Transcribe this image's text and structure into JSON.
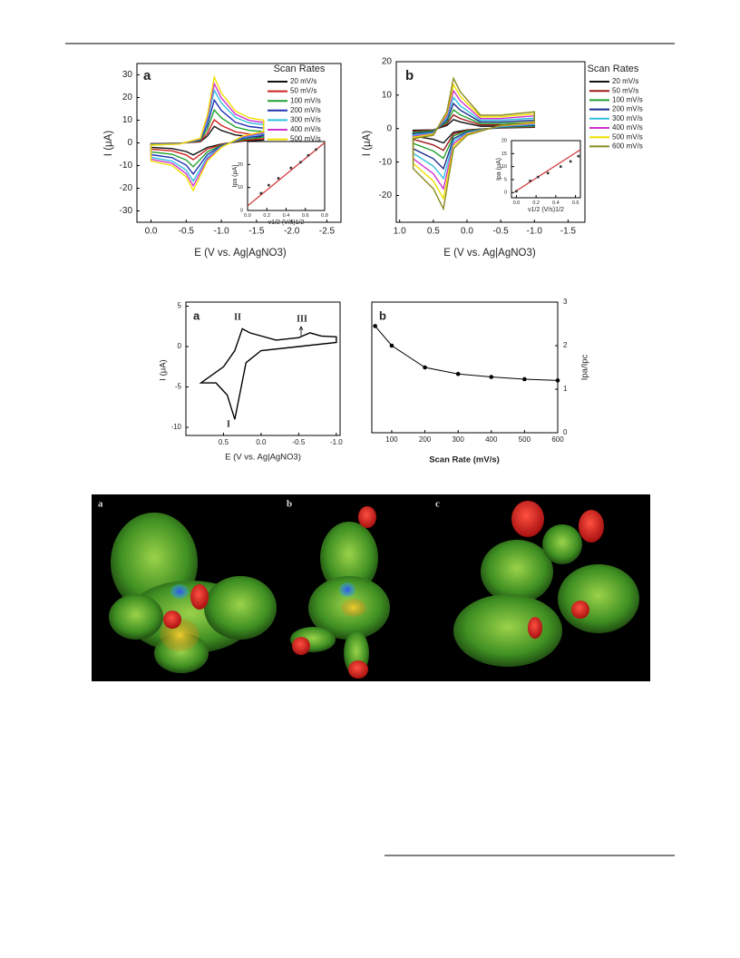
{
  "chart_data": [
    {
      "type": "line",
      "closed": true,
      "panel_label": "a",
      "x_label": "E (V vs. Ag|AgNO3)",
      "y_label": "I (μA)",
      "legend": true,
      "legend_title": "Scan Rates",
      "x": [
        0,
        -0.4,
        -0.7,
        -0.8,
        -0.9,
        -1.0,
        -1.2,
        -1.4,
        -1.6,
        -1.6,
        -1.3,
        -1.0,
        -0.8,
        -0.6,
        -0.5,
        -0.3,
        0
      ],
      "series": [
        {
          "name": "20 mV/s",
          "color": "#111111",
          "values": [
            -0.3,
            -0.1,
            0.5,
            3,
            7.3,
            5.5,
            3.5,
            2.8,
            2.5,
            1.3,
            0.8,
            -0.5,
            -2,
            -5.3,
            -3.8,
            -2.5,
            -2
          ]
        },
        {
          "name": "50 mV/s",
          "color": "#d02020",
          "values": [
            -0.4,
            -0.2,
            0.7,
            4.2,
            10.2,
            7.7,
            4.9,
            3.9,
            3.5,
            1.8,
            1.1,
            -0.7,
            -2.8,
            -7.4,
            -5.3,
            -3.5,
            -2.8
          ]
        },
        {
          "name": "100 mV/s",
          "color": "#20a030",
          "values": [
            -0.5,
            -0.3,
            1,
            6,
            14.5,
            11,
            7,
            5.5,
            5,
            2.5,
            1.5,
            -1,
            -4,
            -10.5,
            -7.5,
            -5,
            -4
          ]
        },
        {
          "name": "200 mV/s",
          "color": "#2030b0",
          "values": [
            -0.7,
            -0.3,
            1.3,
            7.8,
            18.9,
            14.3,
            9.1,
            7.2,
            6.5,
            3.3,
            2,
            -1.3,
            -5.2,
            -13.7,
            -9.8,
            -6.5,
            -5.2
          ]
        },
        {
          "name": "300 mV/s",
          "color": "#30c0e0",
          "values": [
            -0.8,
            -0.4,
            1.6,
            9.6,
            23.2,
            17.6,
            11.2,
            8.8,
            8,
            4,
            2.4,
            -1.6,
            -6.4,
            -16.8,
            -12,
            -8,
            -6.4
          ]
        },
        {
          "name": "400 mV/s",
          "color": "#d030d0",
          "values": [
            -0.9,
            -0.5,
            1.8,
            10.8,
            26.1,
            19.8,
            12.6,
            9.9,
            9,
            4.5,
            2.7,
            -1.8,
            -7.2,
            -18.9,
            -13.5,
            -9,
            -7.2
          ]
        },
        {
          "name": "500 mV/s",
          "color": "#f0e000",
          "values": [
            -1,
            -0.5,
            2,
            12,
            29,
            22,
            14,
            11,
            10,
            5,
            3,
            -2,
            -8,
            -21,
            -15,
            -10,
            -8
          ]
        }
      ],
      "xlim": [
        0.2,
        -2.7
      ],
      "xticks": [
        {
          "value": 0,
          "label": "0.0"
        },
        -0.5,
        {
          "value": -1,
          "label": "-1.0"
        },
        -1.5,
        {
          "value": -2,
          "label": "-2.0"
        },
        -2.5
      ],
      "ylim": [
        -35,
        35
      ],
      "yticks": [
        -30,
        -20,
        -10,
        0,
        10,
        20,
        30
      ],
      "inset": {
        "type": "scatter",
        "x_label": "ν1/2 (V/s)1/2",
        "y_label": "Ipa (μA)",
        "color": "#333333",
        "x": [
          0.14,
          0.22,
          0.32,
          0.45,
          0.55,
          0.63,
          0.71
        ],
        "values": [
          7.5,
          11,
          14,
          18.5,
          21,
          24,
          26.5
        ],
        "fit": {
          "color": "#d03030",
          "x": [
            0,
            0.8
          ],
          "values": [
            2,
            29.5
          ]
        },
        "xlim": [
          0,
          0.8
        ],
        "xticks": [
          {
            "value": 0,
            "label": "0.0"
          },
          0.2,
          0.4,
          0.6,
          0.8
        ],
        "ylim": [
          0,
          30
        ],
        "yticks": [
          0,
          10,
          20
        ]
      }
    },
    {
      "type": "line",
      "closed": true,
      "panel_label": "b",
      "x_label": "E (V vs. Ag|AgNO3)",
      "y_label": "I (μA)",
      "legend": true,
      "legend_title": "Scan Rates",
      "x": [
        0.8,
        0.5,
        0.3,
        0.2,
        0.1,
        -0.2,
        -0.5,
        -1.0,
        -1.0,
        -0.5,
        0,
        0.2,
        0.35,
        0.5,
        0.8
      ],
      "series": [
        {
          "name": "20 mV/s",
          "color": "#111111",
          "values": [
            -0.5,
            -0.4,
            0.9,
            2.7,
            2,
            0.7,
            0.7,
            0.9,
            0.4,
            0.2,
            -0.4,
            -1.1,
            -4.3,
            -3.2,
            -2.2
          ]
        },
        {
          "name": "50 mV/s",
          "color": "#a01818",
          "values": [
            -0.8,
            -0.5,
            1.4,
            4.1,
            3,
            1.1,
            1.1,
            1.4,
            0.5,
            0.3,
            -0.5,
            -1.6,
            -6.5,
            -4.9,
            -3.2
          ]
        },
        {
          "name": "100 mV/s",
          "color": "#20a030",
          "values": [
            -1.1,
            -0.7,
            1.9,
            5.6,
            4.1,
            1.5,
            1.5,
            1.9,
            0.7,
            0.4,
            -0.7,
            -2.2,
            -8.9,
            -6.7,
            -4.4
          ]
        },
        {
          "name": "200 mV/s",
          "color": "#1a2a8a",
          "values": [
            -1.5,
            -1,
            2.5,
            7.5,
            5.5,
            2,
            2,
            2.5,
            1,
            0.5,
            -1,
            -3,
            -12,
            -9,
            -6
          ]
        },
        {
          "name": "300 mV/s",
          "color": "#30c0e0",
          "values": [
            -1.9,
            -1.2,
            3.1,
            9.3,
            6.8,
            2.5,
            2.5,
            3.1,
            1.2,
            0.6,
            -1.2,
            -3.7,
            -14.9,
            -11.2,
            -7.4
          ]
        },
        {
          "name": "400 mV/s",
          "color": "#d030d0",
          "values": [
            -2.3,
            -1.5,
            3.8,
            11.3,
            8.3,
            3,
            3,
            3.8,
            1.5,
            0.8,
            -1.5,
            -4.5,
            -18,
            -13.5,
            -9
          ]
        },
        {
          "name": "500 mV/s",
          "color": "#f0e000",
          "values": [
            -2.6,
            -1.7,
            4.4,
            13.1,
            9.6,
            3.5,
            3.5,
            4.4,
            1.7,
            0.9,
            -1.7,
            -5.2,
            -20.9,
            -15.7,
            -10.4
          ]
        },
        {
          "name": "600 mV/s",
          "color": "#8a8a20",
          "values": [
            -3,
            -2,
            5,
            15,
            11,
            4,
            4,
            5,
            2,
            1,
            -2,
            -6,
            -24,
            -18,
            -12
          ]
        }
      ],
      "xlim": [
        1.05,
        -1.75
      ],
      "xticks": [
        {
          "value": 1,
          "label": "1.0"
        },
        0.5,
        {
          "value": 0,
          "label": "0.0"
        },
        -0.5,
        {
          "value": -1,
          "label": "-1.0"
        },
        -1.5
      ],
      "ylim": [
        -28,
        20
      ],
      "yticks": [
        -20,
        -10,
        0,
        10,
        20
      ],
      "inset": {
        "type": "scatter",
        "x_label": "ν1/2 (V/s)1/2",
        "y_label": "Ipa (μA)",
        "color": "#333333",
        "x": [
          0,
          0.14,
          0.22,
          0.32,
          0.45,
          0.55,
          0.63
        ],
        "values": [
          0.5,
          4.5,
          6,
          7.5,
          10,
          12,
          14
        ],
        "fit": {
          "color": "#d03030",
          "x": [
            -0.02,
            0.65
          ],
          "values": [
            0.2,
            16.5
          ]
        },
        "xlim": [
          -0.05,
          0.65
        ],
        "xticks": [
          {
            "value": 0,
            "label": "0.0"
          },
          0.2,
          0.4,
          0.6
        ],
        "ylim": [
          -2,
          20
        ],
        "yticks": [
          0,
          5,
          10,
          15,
          20
        ]
      }
    },
    {
      "type": "line",
      "closed": true,
      "panel_label": "a",
      "x_label": "E (V vs. Ag|AgNO3)",
      "y_label": "I (μA)",
      "annotations": [
        "I",
        "II",
        "III"
      ],
      "x": [
        0.8,
        0.5,
        0.35,
        0.25,
        0.15,
        -0.2,
        -0.5,
        -0.65,
        -0.8,
        -1.0,
        -1.0,
        -0.5,
        0,
        0.2,
        0.35,
        0.45,
        0.6,
        0.8
      ],
      "series": [
        {
          "color": "#000000",
          "values": [
            -4.5,
            -2.5,
            -0.5,
            2.2,
            1.7,
            0.8,
            1.1,
            1.7,
            1.3,
            1.2,
            0.5,
            0,
            -0.5,
            -2,
            -9,
            -6,
            -4.5,
            -4.5
          ]
        }
      ],
      "xlim": [
        1.0,
        -1.05
      ],
      "xticks": [
        0.5,
        {
          "value": 0,
          "label": "0.0"
        },
        -0.5,
        {
          "value": -1,
          "label": "-1.0"
        }
      ],
      "ylim": [
        -11,
        5.5
      ],
      "yticks": [
        5,
        0,
        -5,
        -10
      ]
    },
    {
      "type": "line",
      "panel_label": "b",
      "x_label": "Scan Rate (mV/s)",
      "y_label": "Ipa/Ipc",
      "y_axis_side": "right",
      "color": "#000000",
      "markers": true,
      "x": [
        50,
        100,
        200,
        300,
        400,
        500,
        600
      ],
      "values": [
        2.45,
        2.0,
        1.5,
        1.35,
        1.28,
        1.23,
        1.2
      ],
      "xlim": [
        40,
        600
      ],
      "xticks": [
        100,
        200,
        300,
        400,
        500,
        600
      ],
      "ylim": [
        0,
        3
      ],
      "yticks": [
        0,
        1,
        2,
        3
      ]
    }
  ],
  "figure3": {
    "panel_labels": [
      "a",
      "b",
      "c"
    ]
  }
}
